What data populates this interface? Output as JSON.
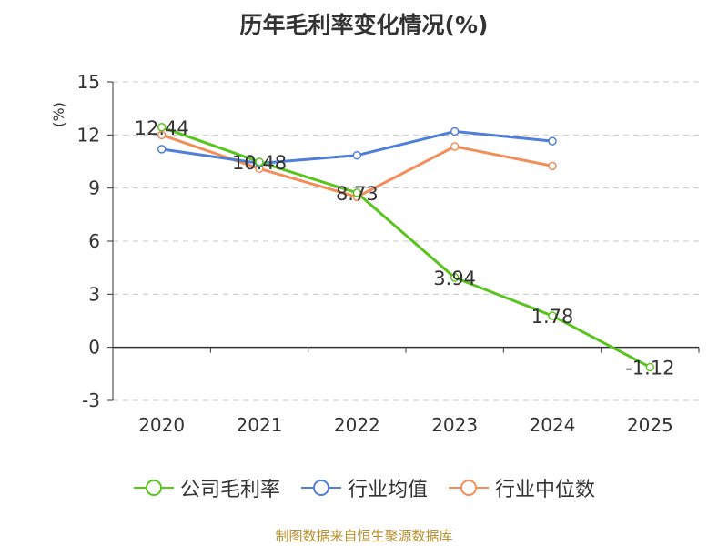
{
  "chart_data": {
    "type": "line",
    "title": "历年毛利率变化情况(%)",
    "ylabel": "(%)",
    "categories": [
      "2020",
      "2021",
      "2022",
      "2023",
      "2024",
      "2025"
    ],
    "ylim": [
      -3,
      15
    ],
    "yticks": [
      -3,
      0,
      3,
      6,
      9,
      12,
      15
    ],
    "grid": true,
    "legend_position": "bottom",
    "series": [
      {
        "name": "公司毛利率",
        "color": "#5ac41f",
        "values": [
          12.44,
          10.48,
          8.73,
          3.94,
          1.78,
          -1.12
        ],
        "labels": [
          "12.44",
          "10.48",
          "8.73",
          "3.94",
          "1.78",
          "-1.12"
        ]
      },
      {
        "name": "行业均值",
        "color": "#4f7fd9",
        "values": [
          11.2,
          10.4,
          10.85,
          12.2,
          11.65,
          null
        ]
      },
      {
        "name": "行业中位数",
        "color": "#f28e5a",
        "values": [
          12.0,
          10.1,
          8.5,
          11.35,
          10.25,
          null
        ]
      }
    ]
  },
  "source_note": "制图数据来自恒生聚源数据库"
}
